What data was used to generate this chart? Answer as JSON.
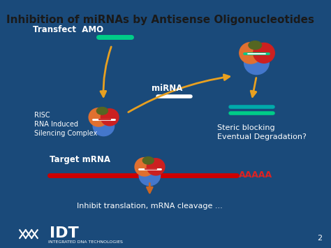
{
  "title": "Inhibition of miRNAs by Antisense Oligonucleotides",
  "title_color": "#1a1a1a",
  "title_bg": "#d0d8e8",
  "bg_color": "#1a4a7a",
  "labels": {
    "transfect": "Transfect  AMO",
    "risc": "RISC\nRNA Induced\nSilencing Complex",
    "mirna": "miRNA",
    "steric": "Steric blocking\nEventual Degradation?",
    "target": "Target mRNA",
    "aaaaa": "AAAAA",
    "inhibit": "Inhibit translation, mRNA cleavage ...",
    "page": "2",
    "idt_sub": "INTEGRATED DNA TECHNOLOGIES"
  },
  "colors": {
    "green_bar": "#00cc88",
    "red_bar": "#cc3333",
    "orange_arrow": "#e8a020",
    "red_line": "#cc0000",
    "orange_down_arrow": "#cc6622",
    "orange_circle": "#e07030",
    "red_circle": "#cc2020",
    "blue_circle": "#4477cc",
    "olive_circle": "#556622",
    "teal_bar_steric": "#00aaaa"
  }
}
